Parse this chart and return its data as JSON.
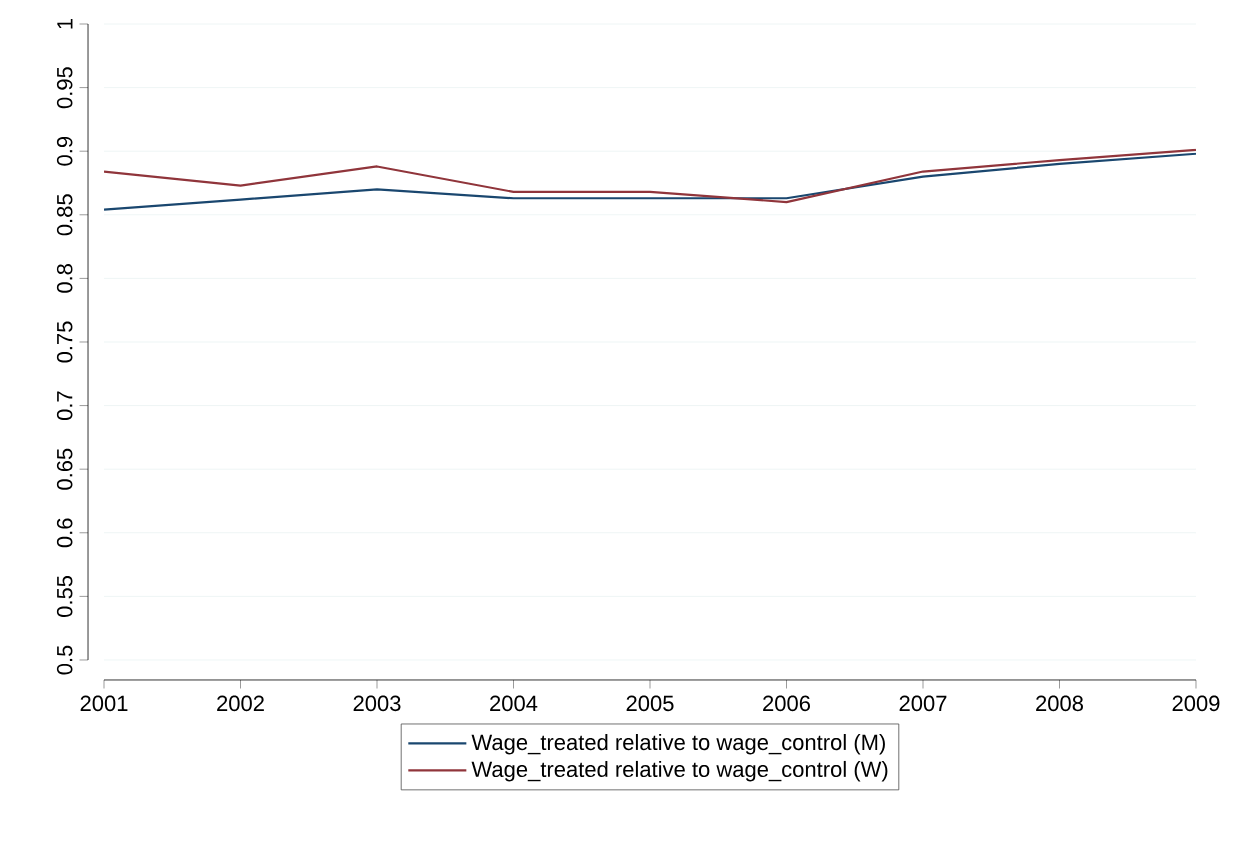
{
  "chart_data": {
    "type": "line",
    "x": [
      2001,
      2002,
      2003,
      2004,
      2005,
      2006,
      2007,
      2008,
      2009
    ],
    "xlim": [
      2001,
      2009
    ],
    "xticks": [
      2001,
      2002,
      2003,
      2004,
      2005,
      2006,
      2007,
      2008,
      2009
    ],
    "ylim": [
      0.5,
      1
    ],
    "yticks": [
      0.5,
      0.55,
      0.6,
      0.65,
      0.7,
      0.75,
      0.8,
      0.85,
      0.9,
      0.95,
      1
    ],
    "grid": "y",
    "legend": "bottom",
    "marker": "none",
    "line_style": "solid",
    "series": [
      {
        "name": "Wage_treated relative to wage_control (M)",
        "color": "#1a476f",
        "values": [
          0.854,
          0.862,
          0.87,
          0.863,
          0.863,
          0.863,
          0.88,
          0.89,
          0.898
        ]
      },
      {
        "name": "Wage_treated relative to wage_control (W)",
        "color": "#90353b",
        "values": [
          0.884,
          0.873,
          0.888,
          0.868,
          0.868,
          0.86,
          0.884,
          0.893,
          0.901
        ]
      }
    ]
  }
}
